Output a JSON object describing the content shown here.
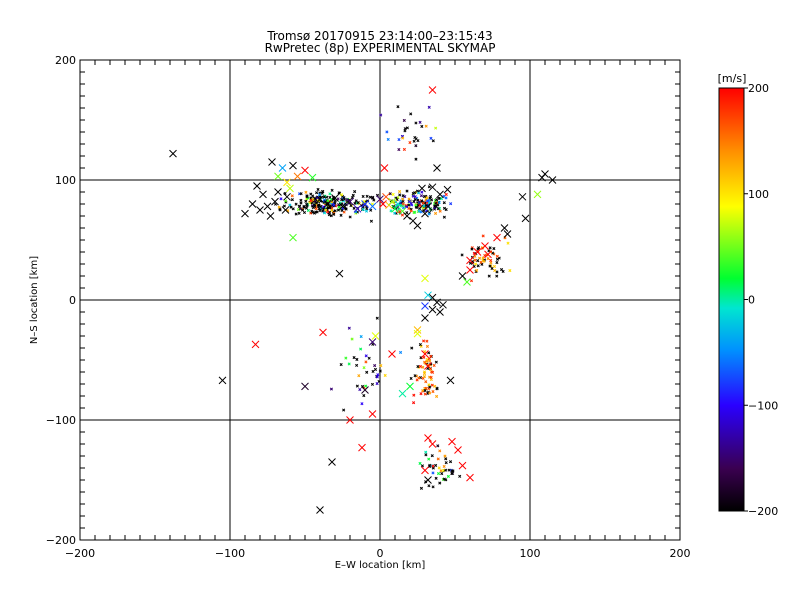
{
  "chart_data": {
    "type": "scatter",
    "title": "Tromsø 20170915 23:14:00–23:15:43",
    "subtitle": "RwPretec (8p) EXPERIMENTAL SKYMAP",
    "xlabel": "E–W location [km]",
    "ylabel": "N–S location [km]",
    "xlim": [
      -200,
      200
    ],
    "ylim": [
      -200,
      200
    ],
    "x_ticks": [
      "−200",
      "−100",
      "0",
      "100",
      "200"
    ],
    "y_ticks": [
      "200",
      "100",
      "0",
      "−100",
      "−200"
    ],
    "x_tick_values": [
      -200,
      -100,
      0,
      100,
      200
    ],
    "y_tick_values": [
      200,
      100,
      0,
      -100,
      -200
    ],
    "grid_lines": [
      -100,
      0,
      100
    ],
    "grid": true,
    "colorbar": {
      "label": "[m/s]",
      "range": [
        -200,
        200
      ],
      "ticks": [
        "200",
        "100",
        "0",
        "−100",
        "−200"
      ],
      "tick_values": [
        200,
        100,
        0,
        -100,
        -200
      ],
      "colormap": "rainbow (black-purple-blue-cyan-green-yellow-orange-red)"
    },
    "marker_large": [
      {
        "x": -138,
        "y": 122,
        "v": -200
      },
      {
        "x": 35,
        "y": 175,
        "v": 200
      },
      {
        "x": -55,
        "y": 103,
        "v": 150
      },
      {
        "x": -62,
        "y": 98,
        "v": 100
      },
      {
        "x": -68,
        "y": 103,
        "v": 50
      },
      {
        "x": -50,
        "y": 108,
        "v": 200
      },
      {
        "x": -45,
        "y": 102,
        "v": 30
      },
      {
        "x": -58,
        "y": 112,
        "v": -200
      },
      {
        "x": -60,
        "y": 93,
        "v": 70
      },
      {
        "x": -65,
        "y": 110,
        "v": -40
      },
      {
        "x": -72,
        "y": 115,
        "v": -200
      },
      {
        "x": -85,
        "y": 80,
        "v": -200
      },
      {
        "x": -80,
        "y": 75,
        "v": -200
      },
      {
        "x": -78,
        "y": 88,
        "v": -200
      },
      {
        "x": -73,
        "y": 70,
        "v": -200
      },
      {
        "x": -70,
        "y": 82,
        "v": -200
      },
      {
        "x": -63,
        "y": 75,
        "v": -200
      },
      {
        "x": -62,
        "y": 86,
        "v": -200
      },
      {
        "x": -90,
        "y": 72,
        "v": -200
      },
      {
        "x": -82,
        "y": 95,
        "v": -200
      },
      {
        "x": -75,
        "y": 78,
        "v": -200
      },
      {
        "x": -68,
        "y": 90,
        "v": -200
      },
      {
        "x": -58,
        "y": 52,
        "v": 40
      },
      {
        "x": -40,
        "y": 84,
        "v": -200
      },
      {
        "x": -35,
        "y": 80,
        "v": -200
      },
      {
        "x": -30,
        "y": 85,
        "v": -200
      },
      {
        "x": -25,
        "y": 78,
        "v": -200
      },
      {
        "x": -20,
        "y": 82,
        "v": -150
      },
      {
        "x": -15,
        "y": 76,
        "v": -120
      },
      {
        "x": -10,
        "y": 80,
        "v": -80
      },
      {
        "x": -5,
        "y": 78,
        "v": -60
      },
      {
        "x": 0,
        "y": 84,
        "v": -150
      },
      {
        "x": 2,
        "y": 80,
        "v": 200
      },
      {
        "x": 4,
        "y": 86,
        "v": 170
      },
      {
        "x": 6,
        "y": 79,
        "v": 120
      },
      {
        "x": 8,
        "y": 82,
        "v": 60
      },
      {
        "x": 10,
        "y": 76,
        "v": 20
      },
      {
        "x": 12,
        "y": 80,
        "v": -10
      },
      {
        "x": 15,
        "y": 74,
        "v": 40
      },
      {
        "x": 18,
        "y": 70,
        "v": -200
      },
      {
        "x": 22,
        "y": 66,
        "v": -200
      },
      {
        "x": 25,
        "y": 62,
        "v": -200
      },
      {
        "x": 30,
        "y": 72,
        "v": -200
      },
      {
        "x": 32,
        "y": 78,
        "v": -200
      },
      {
        "x": 35,
        "y": 94,
        "v": -200
      },
      {
        "x": 40,
        "y": 88,
        "v": -200
      },
      {
        "x": 45,
        "y": 92,
        "v": -200
      },
      {
        "x": 38,
        "y": 110,
        "v": -200
      },
      {
        "x": 28,
        "y": 93,
        "v": -200
      },
      {
        "x": 3,
        "y": 110,
        "v": 200
      },
      {
        "x": -27,
        "y": 22,
        "v": -200
      },
      {
        "x": -38,
        "y": -27,
        "v": 200
      },
      {
        "x": -5,
        "y": -35,
        "v": -150
      },
      {
        "x": -3,
        "y": -30,
        "v": 80
      },
      {
        "x": -83,
        "y": -37,
        "v": 200
      },
      {
        "x": -105,
        "y": -67,
        "v": -200
      },
      {
        "x": -50,
        "y": -72,
        "v": -180
      },
      {
        "x": -10,
        "y": -75,
        "v": -180
      },
      {
        "x": 20,
        "y": -72,
        "v": 20
      },
      {
        "x": 8,
        "y": -45,
        "v": 200
      },
      {
        "x": 25,
        "y": -25,
        "v": 120
      },
      {
        "x": 25,
        "y": -28,
        "v": 80
      },
      {
        "x": 30,
        "y": -45,
        "v": 200
      },
      {
        "x": 32,
        "y": -55,
        "v": 200
      },
      {
        "x": 47,
        "y": -67,
        "v": -200
      },
      {
        "x": 30,
        "y": -15,
        "v": -200
      },
      {
        "x": 35,
        "y": 2,
        "v": -200
      },
      {
        "x": 38,
        "y": -2,
        "v": -200
      },
      {
        "x": 40,
        "y": -10,
        "v": -200
      },
      {
        "x": 42,
        "y": -4,
        "v": -200
      },
      {
        "x": 35,
        "y": -8,
        "v": -200
      },
      {
        "x": 30,
        "y": -5,
        "v": -80
      },
      {
        "x": 32,
        "y": 4,
        "v": -20
      },
      {
        "x": 30,
        "y": 18,
        "v": 80
      },
      {
        "x": 55,
        "y": 20,
        "v": -200
      },
      {
        "x": 60,
        "y": 25,
        "v": 200
      },
      {
        "x": 58,
        "y": 15,
        "v": 40
      },
      {
        "x": 60,
        "y": 33,
        "v": 200
      },
      {
        "x": 65,
        "y": 40,
        "v": 200
      },
      {
        "x": 70,
        "y": 45,
        "v": 200
      },
      {
        "x": 72,
        "y": 38,
        "v": 200
      },
      {
        "x": 78,
        "y": 52,
        "v": 200
      },
      {
        "x": 83,
        "y": 60,
        "v": -200
      },
      {
        "x": 85,
        "y": 55,
        "v": -200
      },
      {
        "x": 97,
        "y": 68,
        "v": -200
      },
      {
        "x": 95,
        "y": 86,
        "v": -200
      },
      {
        "x": 105,
        "y": 88,
        "v": 60
      },
      {
        "x": 110,
        "y": 105,
        "v": -200
      },
      {
        "x": 115,
        "y": 100,
        "v": -200
      },
      {
        "x": 108,
        "y": 102,
        "v": -200
      },
      {
        "x": 32,
        "y": -115,
        "v": 200
      },
      {
        "x": 35,
        "y": -120,
        "v": 200
      },
      {
        "x": 30,
        "y": -142,
        "v": 200
      },
      {
        "x": 48,
        "y": -118,
        "v": 200
      },
      {
        "x": 52,
        "y": -125,
        "v": 200
      },
      {
        "x": 55,
        "y": -138,
        "v": 200
      },
      {
        "x": 60,
        "y": -148,
        "v": 200
      },
      {
        "x": 15,
        "y": -78,
        "v": 0
      },
      {
        "x": -20,
        "y": -100,
        "v": 200
      },
      {
        "x": -5,
        "y": -95,
        "v": 200
      },
      {
        "x": 32,
        "y": -150,
        "v": -200
      },
      {
        "x": -12,
        "y": -123,
        "v": 200
      },
      {
        "x": -32,
        "y": -135,
        "v": -200
      },
      {
        "x": -40,
        "y": -175,
        "v": -200
      }
    ]
  }
}
